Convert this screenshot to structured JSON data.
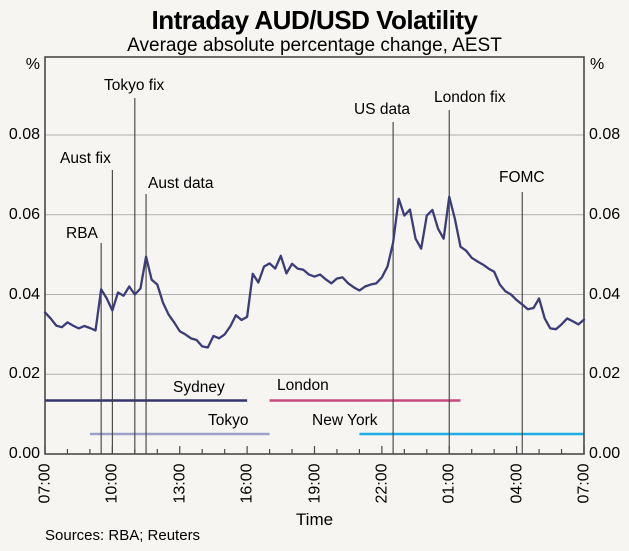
{
  "chart_data": {
    "type": "line",
    "title": "Intraday AUD/USD Volatility",
    "subtitle": "Average absolute percentage change, AEST",
    "unit": "%",
    "xlabel": "Time",
    "sources": "Sources: RBA; Reuters",
    "x_ticks": [
      "07:00",
      "10:00",
      "13:00",
      "16:00",
      "19:00",
      "22:00",
      "01:00",
      "04:00",
      "07:00"
    ],
    "y_ticks": [
      "0.08",
      "0.06",
      "0.04",
      "0.02",
      "0.00"
    ],
    "y_tick_values": [
      0.08,
      0.06,
      0.04,
      0.02,
      0.0
    ],
    "ylim": [
      0,
      0.0996
    ],
    "x_span_hours": 24,
    "x_start": "07:00",
    "x_step_minutes": 15,
    "grid": true,
    "series": [
      {
        "name": "AUD/USD average absolute percentage change",
        "color": "#3c3c78",
        "values": [
          0.0355,
          0.034,
          0.0322,
          0.0318,
          0.033,
          0.0322,
          0.0315,
          0.0321,
          0.0316,
          0.031,
          0.0413,
          0.039,
          0.036,
          0.0405,
          0.0397,
          0.042,
          0.04,
          0.0415,
          0.0495,
          0.0437,
          0.0425,
          0.038,
          0.035,
          0.033,
          0.0308,
          0.03,
          0.029,
          0.0286,
          0.027,
          0.0267,
          0.0296,
          0.029,
          0.03,
          0.032,
          0.0348,
          0.0336,
          0.0344,
          0.0452,
          0.043,
          0.047,
          0.0478,
          0.0465,
          0.0497,
          0.0453,
          0.0477,
          0.0465,
          0.0462,
          0.045,
          0.0445,
          0.045,
          0.0438,
          0.0428,
          0.044,
          0.0443,
          0.0428,
          0.0418,
          0.041,
          0.042,
          0.0425,
          0.0428,
          0.0443,
          0.047,
          0.053,
          0.064,
          0.0598,
          0.0613,
          0.054,
          0.0515,
          0.0598,
          0.0612,
          0.0565,
          0.054,
          0.0645,
          0.059,
          0.052,
          0.051,
          0.0492,
          0.0483,
          0.0475,
          0.0465,
          0.0457,
          0.0425,
          0.0408,
          0.04,
          0.0386,
          0.0375,
          0.0363,
          0.0366,
          0.039,
          0.034,
          0.0315,
          0.0313,
          0.0325,
          0.034,
          0.0333,
          0.0325,
          0.0337
        ]
      }
    ],
    "annotations": [
      {
        "label": "RBA",
        "time": "09:30"
      },
      {
        "label": "Aust fix",
        "time": "10:00"
      },
      {
        "label": "Tokyo fix",
        "time": "11:00"
      },
      {
        "label": "Aust data",
        "time": "11:30"
      },
      {
        "label": "US data",
        "time": "22:30"
      },
      {
        "label": "London fix",
        "time": "01:00"
      },
      {
        "label": "FOMC",
        "time": "04:15"
      }
    ],
    "sessions": [
      {
        "name": "Sydney",
        "start": "07:00",
        "end": "16:00",
        "color": "#35356e",
        "row": "upper"
      },
      {
        "name": "Tokyo",
        "start": "09:00",
        "end": "17:00",
        "color": "#9da1c9",
        "row": "lower"
      },
      {
        "name": "London",
        "start": "17:00",
        "end": "01:30",
        "color": "#c7497f",
        "row": "upper"
      },
      {
        "name": "New York",
        "start": "21:00",
        "end": "07:00",
        "color": "#20ade3",
        "row": "lower"
      }
    ]
  },
  "colors": {
    "background": "#f6f5f1",
    "grid": "#b0b0b0",
    "frame": "#4a4a4a",
    "annotation_line": "#3f3f3f",
    "text": "#000000"
  }
}
